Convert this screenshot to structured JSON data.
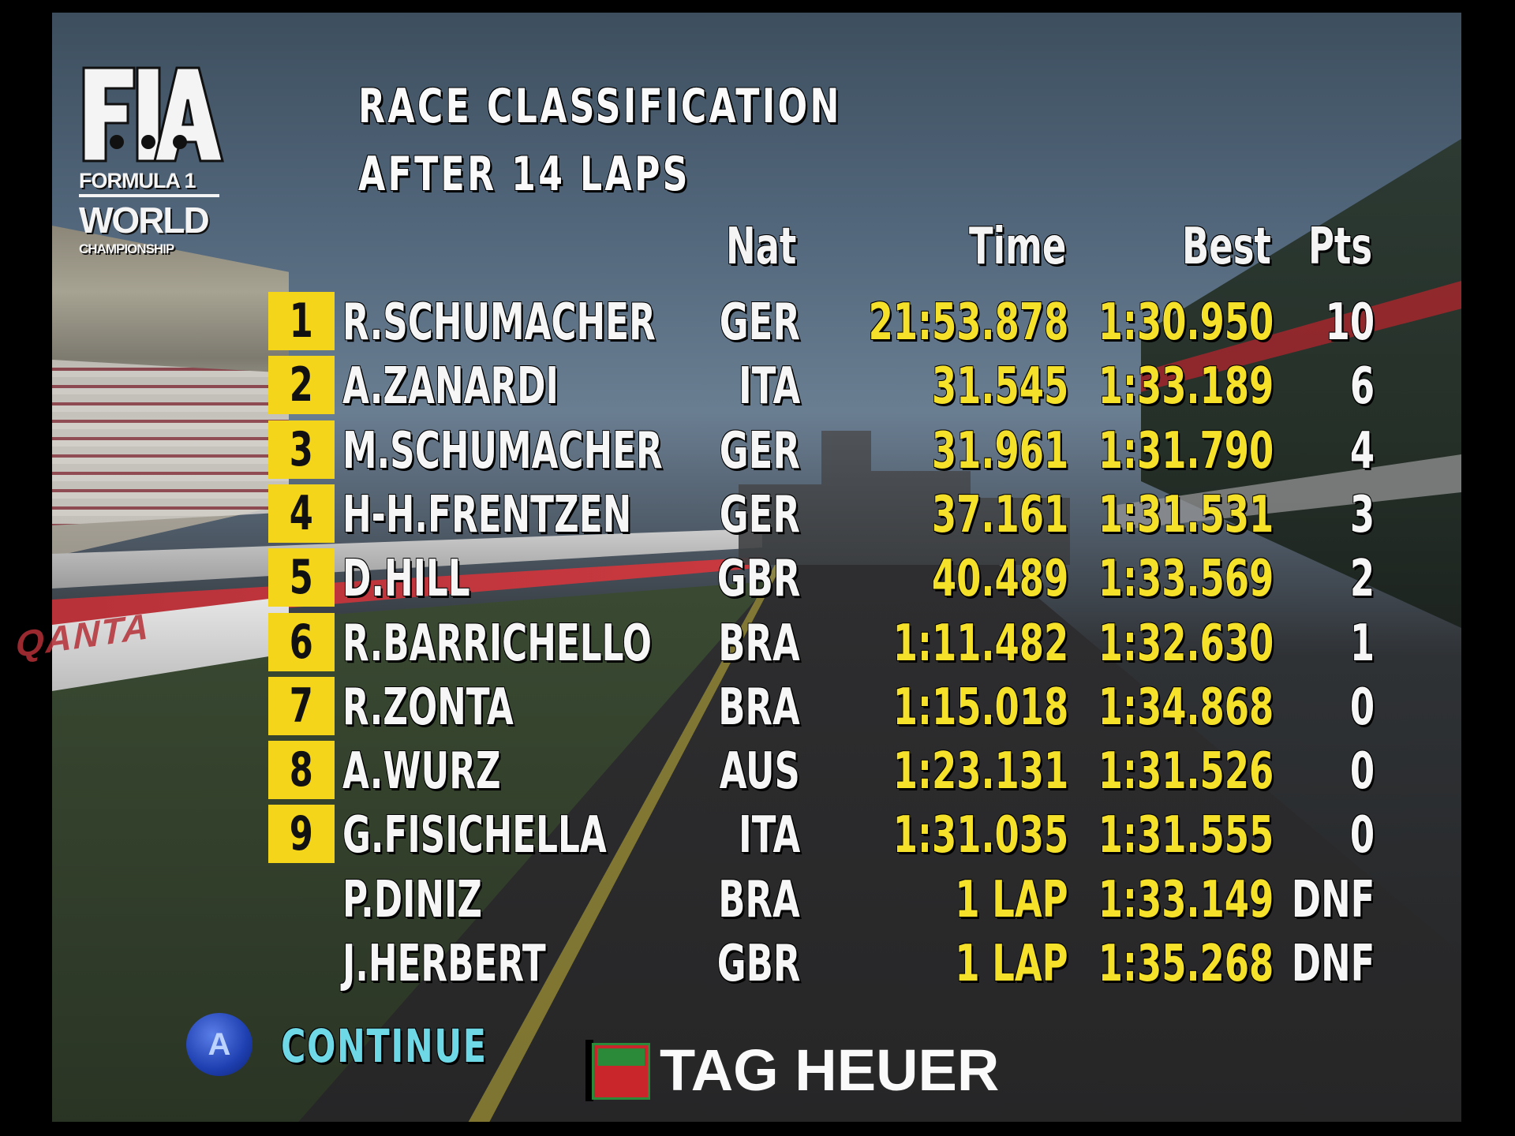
{
  "logo": {
    "formula": "FORMULA 1",
    "world": "WORLD",
    "championship": "CHAMPIONSHIP"
  },
  "title": {
    "line1": "RACE CLASSIFICATION",
    "line2": "AFTER 14 LAPS"
  },
  "columns": {
    "nat": "Nat",
    "time": "Time",
    "best": "Best",
    "pts": "Pts"
  },
  "rows": [
    {
      "pos": "1",
      "name": "R.SCHUMACHER",
      "nat": "GER",
      "time": "21:53.878",
      "best": "1:30.950",
      "pts": "10"
    },
    {
      "pos": "2",
      "name": "A.ZANARDI",
      "nat": "ITA",
      "time": "31.545",
      "best": "1:33.189",
      "pts": "6"
    },
    {
      "pos": "3",
      "name": "M.SCHUMACHER",
      "nat": "GER",
      "time": "31.961",
      "best": "1:31.790",
      "pts": "4"
    },
    {
      "pos": "4",
      "name": "H-H.FRENTZEN",
      "nat": "GER",
      "time": "37.161",
      "best": "1:31.531",
      "pts": "3"
    },
    {
      "pos": "5",
      "name": "D.HILL",
      "nat": "GBR",
      "time": "40.489",
      "best": "1:33.569",
      "pts": "2"
    },
    {
      "pos": "6",
      "name": "R.BARRICHELLO",
      "nat": "BRA",
      "time": "1:11.482",
      "best": "1:32.630",
      "pts": "1"
    },
    {
      "pos": "7",
      "name": "R.ZONTA",
      "nat": "BRA",
      "time": "1:15.018",
      "best": "1:34.868",
      "pts": "0"
    },
    {
      "pos": "8",
      "name": "A.WURZ",
      "nat": "AUS",
      "time": "1:23.131",
      "best": "1:31.526",
      "pts": "0"
    },
    {
      "pos": "9",
      "name": "G.FISICHELLA",
      "nat": "ITA",
      "time": "1:31.035",
      "best": "1:31.555",
      "pts": "0"
    },
    {
      "pos": "",
      "name": "P.DINIZ",
      "nat": "BRA",
      "time": "1  LAP",
      "best": "1:33.149",
      "pts": "DNF"
    },
    {
      "pos": "",
      "name": "J.HERBERT",
      "nat": "GBR",
      "time": "1  LAP",
      "best": "1:35.268",
      "pts": "DNF"
    }
  ],
  "footer": {
    "button_glyph": "A",
    "continue_label": "CONTINUE",
    "sponsor": "TAG HEUER"
  },
  "background_text": {
    "qantas": "QANTA"
  },
  "colors": {
    "position_badge": "#f5d51a",
    "time_text": "#f5e02a",
    "continue_text": "#6fd8e6",
    "button_blue": "#1e3fb0"
  },
  "icons": [
    "fia-logo-icon",
    "a-button-icon",
    "tag-heuer-logo-icon"
  ]
}
